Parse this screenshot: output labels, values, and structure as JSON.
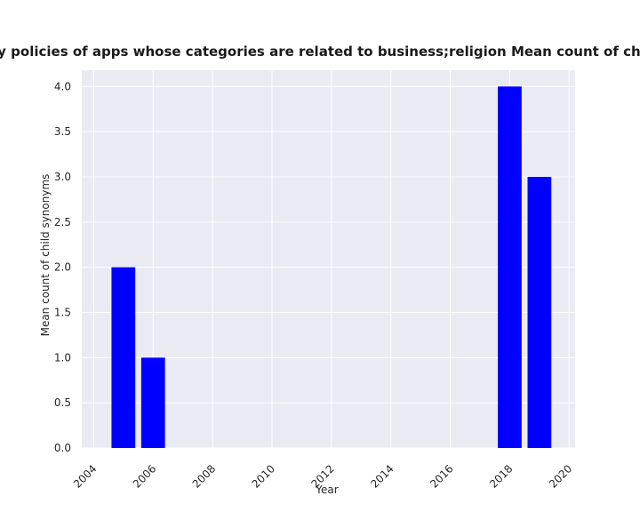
{
  "chart_data": {
    "type": "bar",
    "title": "Mean count of child synonyms in privacy policies of apps whose categories are related to business;religion Mean count of child synonyms in privacy policies by year",
    "xlabel": "Year",
    "ylabel": "Mean count of child synonyms",
    "x": [
      2005,
      2006,
      2018,
      2019
    ],
    "values": [
      2.0,
      1.0,
      4.0,
      3.0
    ],
    "bar_width_years": 0.8,
    "xlim": [
      2003.6,
      2020.2
    ],
    "ylim": [
      0,
      4.18
    ],
    "xticks": [
      2004,
      2006,
      2008,
      2010,
      2012,
      2014,
      2016,
      2018,
      2020
    ],
    "xtick_labels": [
      "2004",
      "2006",
      "2008",
      "2010",
      "2012",
      "2014",
      "2016",
      "2018",
      "2020"
    ],
    "yticks": [
      0.0,
      0.5,
      1.0,
      1.5,
      2.0,
      2.5,
      3.0,
      3.5,
      4.0
    ],
    "ytick_labels": [
      "0.0",
      "0.5",
      "1.0",
      "1.5",
      "2.0",
      "2.5",
      "3.0",
      "3.5",
      "4.0"
    ],
    "grid": true,
    "legend": false,
    "colors": {
      "bar": "#0000ff",
      "plot_background": "#eaeaf2",
      "grid": "#ffffff"
    }
  }
}
